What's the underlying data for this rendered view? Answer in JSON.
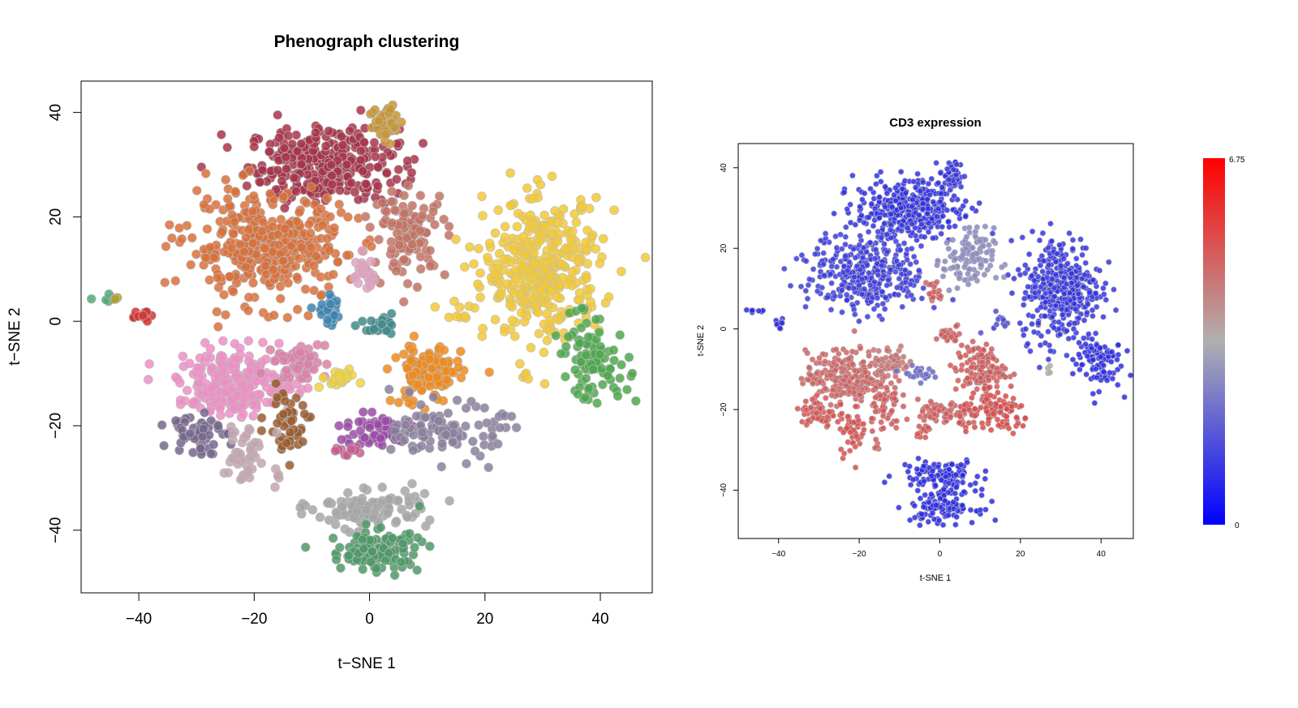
{
  "chart_data": [
    {
      "type": "scatter",
      "title": "Phenograph clustering",
      "xlabel": "t−SNE 1",
      "ylabel": "t−SNE 2",
      "xlim": [
        -50,
        49
      ],
      "ylim": [
        -52,
        46
      ],
      "xticks": [
        -40,
        -20,
        0,
        20,
        40
      ],
      "yticks": [
        -40,
        -20,
        0,
        20,
        40
      ],
      "grid": false,
      "clusters": [
        {
          "color": "#a8344a",
          "cx": -8,
          "cy": 30,
          "sx": 6.5,
          "sy": 3.5,
          "n": 340
        },
        {
          "color": "#d9703a",
          "cx": -18,
          "cy": 14,
          "sx": 7,
          "sy": 5,
          "n": 380
        },
        {
          "color": "#c47263",
          "cx": 7,
          "cy": 17,
          "sx": 3.2,
          "sy": 4,
          "n": 110
        },
        {
          "color": "#c99532",
          "cx": 3,
          "cy": 38,
          "sx": 1.5,
          "sy": 2,
          "n": 45
        },
        {
          "color": "#f2c935",
          "cx": 30,
          "cy": 10,
          "sx": 5,
          "sy": 6.5,
          "n": 380
        },
        {
          "color": "#e0a0c0",
          "cx": -1,
          "cy": 9,
          "sx": 1,
          "sy": 1.6,
          "n": 20
        },
        {
          "color": "#3a84b3",
          "cx": -7,
          "cy": 2,
          "sx": 1.2,
          "sy": 1.4,
          "n": 30
        },
        {
          "color": "#3d8a8a",
          "cx": 2,
          "cy": -1.5,
          "sx": 1.5,
          "sy": 0.9,
          "n": 28
        },
        {
          "color": "#f08a1c",
          "cx": 10,
          "cy": -10,
          "sx": 3,
          "sy": 3,
          "n": 120
        },
        {
          "color": "#4ca84c",
          "cx": 39,
          "cy": -8,
          "sx": 3,
          "sy": 3.5,
          "n": 90
        },
        {
          "color": "#ee8ec4",
          "cx": -23,
          "cy": -12,
          "sx": 5,
          "sy": 3.2,
          "n": 240
        },
        {
          "color": "#dc7fa8",
          "cx": -12,
          "cy": -8,
          "sx": 2.2,
          "sy": 2,
          "n": 50
        },
        {
          "color": "#efd23c",
          "cx": -6,
          "cy": -11,
          "sx": 2,
          "sy": 0.8,
          "n": 22
        },
        {
          "color": "#9a5c2e",
          "cx": -14,
          "cy": -19,
          "sx": 2,
          "sy": 3,
          "n": 50
        },
        {
          "color": "#76668e",
          "cx": -30,
          "cy": -21,
          "sx": 2.2,
          "sy": 2.2,
          "n": 55
        },
        {
          "color": "#c4a4ae",
          "cx": -22,
          "cy": -25,
          "sx": 1.8,
          "sy": 3,
          "n": 45
        },
        {
          "color": "#9b4aa8",
          "cx": 1,
          "cy": -21,
          "sx": 3.2,
          "sy": 1.6,
          "n": 70
        },
        {
          "color": "#c85a90",
          "cx": -4,
          "cy": -25,
          "sx": 1.2,
          "sy": 0.7,
          "n": 12
        },
        {
          "color": "#8a7f9c",
          "cx": 14,
          "cy": -21,
          "sx": 4.5,
          "sy": 2.5,
          "n": 110
        },
        {
          "color": "#a6a6a6",
          "cx": 0,
          "cy": -36,
          "sx": 5,
          "sy": 1.8,
          "n": 110
        },
        {
          "color": "#4c9966",
          "cx": 1,
          "cy": -44,
          "sx": 4,
          "sy": 2,
          "n": 120
        },
        {
          "color": "#53a87a",
          "cx": -45,
          "cy": 4.5,
          "sx": 1.2,
          "sy": 0.3,
          "n": 7
        },
        {
          "color": "#b3a030",
          "cx": -43.5,
          "cy": 4,
          "sx": 0.5,
          "sy": 0.3,
          "n": 3
        },
        {
          "color": "#d43232",
          "cx": -40,
          "cy": 1.5,
          "sx": 1,
          "sy": 0.6,
          "n": 10
        },
        {
          "color": "#f2c935",
          "cx": 15,
          "cy": 2,
          "sx": 2,
          "sy": 1.5,
          "n": 10
        },
        {
          "color": "#f2c935",
          "cx": 27,
          "cy": -10.5,
          "sx": 0.4,
          "sy": 0.5,
          "n": 4
        },
        {
          "color": "#c4a4ae",
          "cx": -16,
          "cy": -29,
          "sx": 0.3,
          "sy": 1,
          "n": 5
        },
        {
          "color": "#4ca84c",
          "cx": 37,
          "cy": 1.5,
          "sx": 2,
          "sy": 1,
          "n": 6
        }
      ]
    },
    {
      "type": "scatter",
      "title": "CD3 expression",
      "xlabel": "t-SNE 1",
      "ylabel": "t-SNE 2",
      "xlim": [
        -50,
        48
      ],
      "ylim": [
        -52,
        46
      ],
      "xticks": [
        -40,
        -20,
        0,
        20,
        40
      ],
      "yticks": [
        -40,
        -20,
        0,
        20,
        40
      ],
      "grid": false,
      "colorbar": {
        "min": 0,
        "max": 6.75,
        "min_label": "0",
        "max_label": "6.75",
        "colors": [
          "#0000ff",
          "#b0b0b0",
          "#ff0000"
        ]
      },
      "clusters": [
        {
          "cx": -8,
          "cy": 30,
          "sx": 6.5,
          "sy": 3.5,
          "n": 340,
          "value": 0.9
        },
        {
          "cx": -18,
          "cy": 14,
          "sx": 7,
          "sy": 5,
          "n": 380,
          "value": 1.1
        },
        {
          "cx": 7,
          "cy": 17,
          "sx": 3.2,
          "sy": 4,
          "n": 110,
          "value": 2.6
        },
        {
          "cx": 3,
          "cy": 38,
          "sx": 1.5,
          "sy": 2,
          "n": 45,
          "value": 1.0
        },
        {
          "cx": 30,
          "cy": 10,
          "sx": 5,
          "sy": 6.5,
          "n": 380,
          "value": 1.0
        },
        {
          "cx": -1,
          "cy": 9,
          "sx": 1,
          "sy": 1.6,
          "n": 20,
          "value": 5.0
        },
        {
          "cx": 2,
          "cy": -1.5,
          "sx": 1.5,
          "sy": 0.9,
          "n": 28,
          "value": 5.0
        },
        {
          "cx": 10,
          "cy": -10,
          "sx": 3,
          "sy": 3,
          "n": 120,
          "value": 5.1
        },
        {
          "cx": 39,
          "cy": -8,
          "sx": 3,
          "sy": 3.5,
          "n": 90,
          "value": 0.8
        },
        {
          "cx": -23,
          "cy": -12,
          "sx": 5,
          "sy": 3.2,
          "n": 240,
          "value": 4.9
        },
        {
          "cx": -12,
          "cy": -8,
          "sx": 2.2,
          "sy": 2,
          "n": 50,
          "value": 4.6
        },
        {
          "cx": -6,
          "cy": -11,
          "sx": 2,
          "sy": 0.8,
          "n": 22,
          "value": 2.0
        },
        {
          "cx": -14,
          "cy": -19,
          "sx": 2,
          "sy": 3,
          "n": 50,
          "value": 5.1
        },
        {
          "cx": -30,
          "cy": -21,
          "sx": 2.2,
          "sy": 2.2,
          "n": 55,
          "value": 5.2
        },
        {
          "cx": -22,
          "cy": -25,
          "sx": 1.8,
          "sy": 3,
          "n": 45,
          "value": 5.3
        },
        {
          "cx": 1,
          "cy": -21,
          "sx": 3.2,
          "sy": 1.6,
          "n": 70,
          "value": 5.0
        },
        {
          "cx": -4,
          "cy": -25,
          "sx": 1.2,
          "sy": 0.7,
          "n": 12,
          "value": 5.2
        },
        {
          "cx": 14,
          "cy": -21,
          "sx": 4.5,
          "sy": 2.5,
          "n": 110,
          "value": 5.4
        },
        {
          "cx": 0,
          "cy": -36,
          "sx": 5,
          "sy": 1.8,
          "n": 110,
          "value": 0.8
        },
        {
          "cx": 1,
          "cy": -44,
          "sx": 4,
          "sy": 2,
          "n": 120,
          "value": 0.8
        },
        {
          "cx": -45,
          "cy": 4.5,
          "sx": 1.2,
          "sy": 0.3,
          "n": 7,
          "value": 0.8
        },
        {
          "cx": -40,
          "cy": 1.5,
          "sx": 1,
          "sy": 0.6,
          "n": 10,
          "value": 0.9
        },
        {
          "cx": 15,
          "cy": 2,
          "sx": 2,
          "sy": 1.5,
          "n": 10,
          "value": 1.5
        },
        {
          "cx": 27,
          "cy": -10.5,
          "sx": 0.4,
          "sy": 0.5,
          "n": 4,
          "value": 3.5
        },
        {
          "cx": -16,
          "cy": -29,
          "sx": 0.3,
          "sy": 1,
          "n": 5,
          "value": 5.0
        }
      ]
    }
  ]
}
